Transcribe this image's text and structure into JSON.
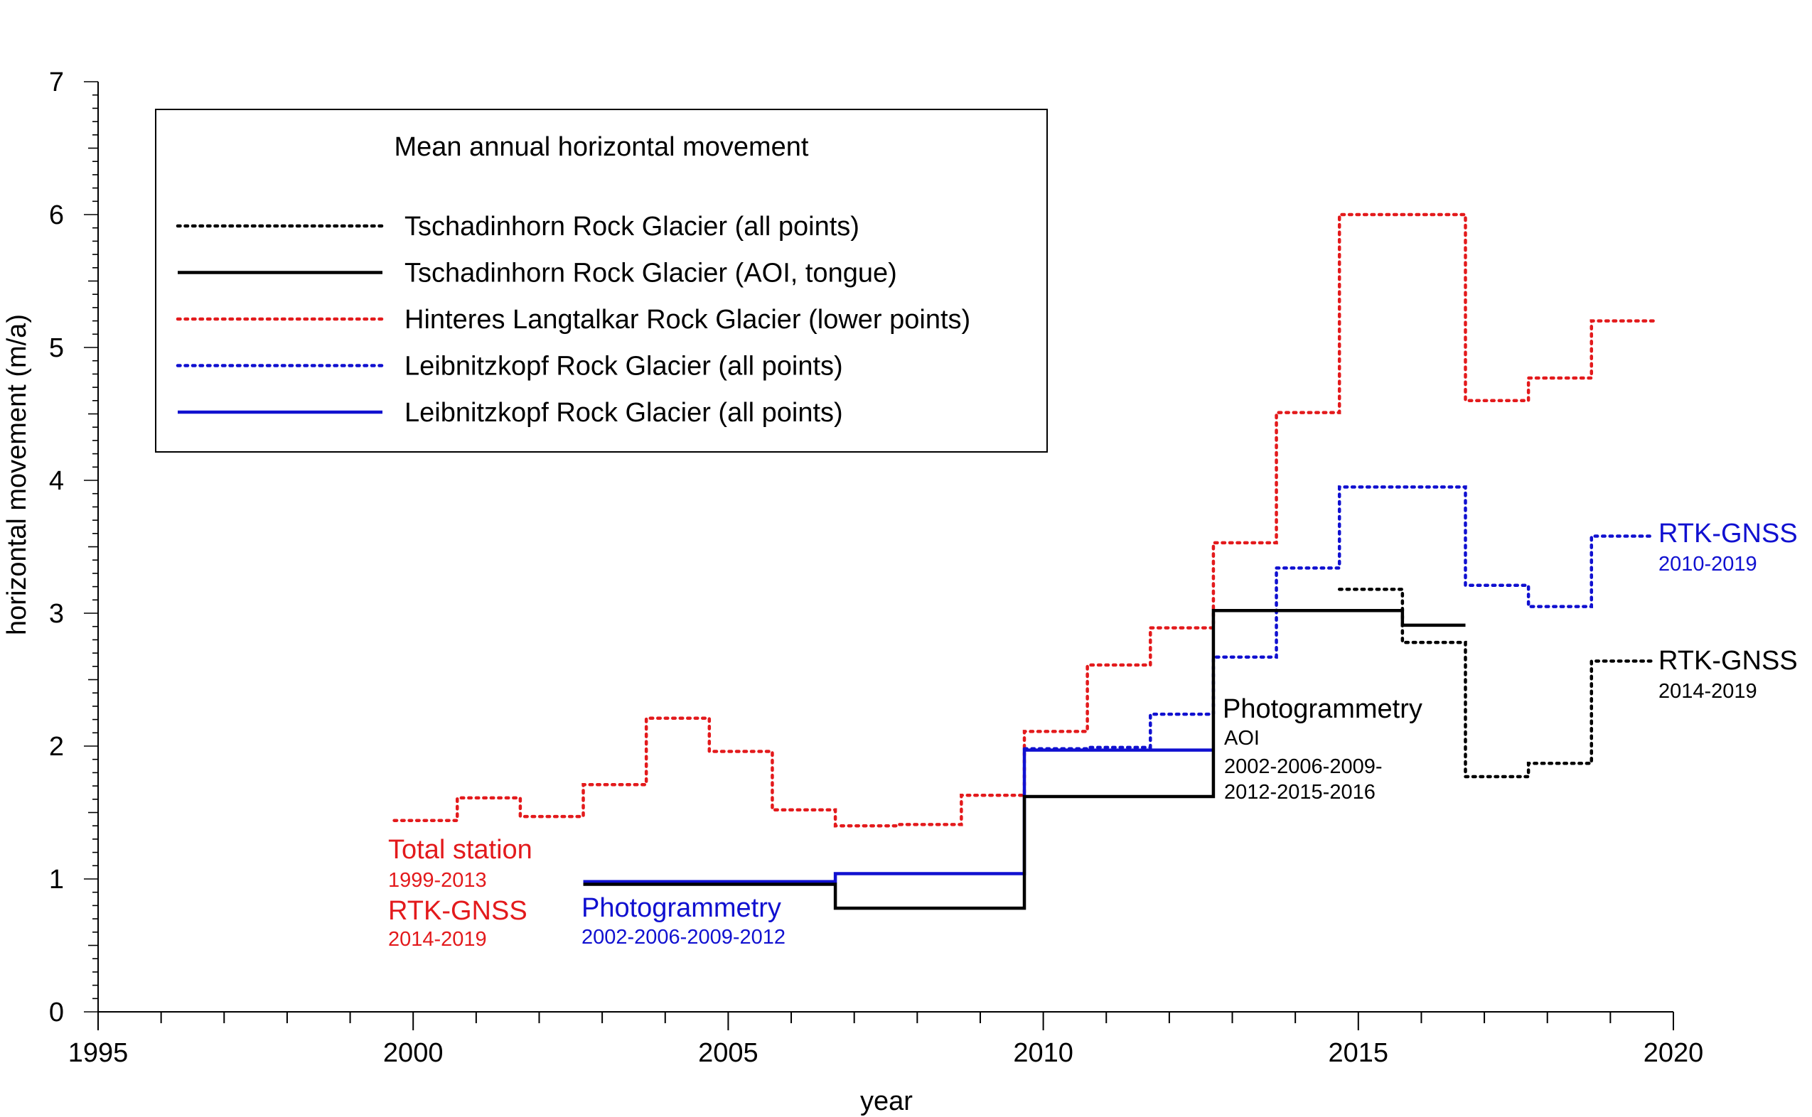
{
  "chart_data": {
    "type": "line",
    "title": "",
    "xlabel": "year",
    "ylabel": "horizontal movement (m/a)",
    "xlim": [
      1995,
      2020
    ],
    "ylim": [
      0,
      7
    ],
    "xticks": [
      1995,
      2000,
      2005,
      2010,
      2015,
      2020
    ],
    "yticks": [
      0,
      1,
      2,
      3,
      4,
      5,
      6,
      7
    ],
    "grid": false,
    "legend": {
      "title": "Mean annual horizontal movement",
      "placement": "top-left",
      "entries": [
        {
          "label": "Tschadinhorn Rock Glacier (all points)",
          "color": "#000000",
          "style": "dotted"
        },
        {
          "label": "Tschadinhorn Rock Glacier (AOI, tongue)",
          "color": "#000000",
          "style": "solid"
        },
        {
          "label": "Hinteres Langtalkar Rock Glacier (lower points)",
          "color": "#e31a1c",
          "style": "dotted"
        },
        {
          "label": "Leibnitzkopf Rock Glacier (all points)",
          "color": "#1010d0",
          "style": "dotted"
        },
        {
          "label": "Leibnitzkopf Rock Glacier (all points)",
          "color": "#1010d0",
          "style": "solid"
        }
      ]
    },
    "series": [
      {
        "color": "#e31a1c",
        "style": "dotted",
        "steps": [
          {
            "x0": 1999.7,
            "x1": 2000.7,
            "y": 1.44
          },
          {
            "x0": 2000.7,
            "x1": 2001.7,
            "y": 1.61
          },
          {
            "x0": 2001.7,
            "x1": 2002.7,
            "y": 1.47
          },
          {
            "x0": 2002.7,
            "x1": 2003.7,
            "y": 1.71
          },
          {
            "x0": 2003.7,
            "x1": 2004.7,
            "y": 2.21
          },
          {
            "x0": 2004.7,
            "x1": 2005.7,
            "y": 1.96
          },
          {
            "x0": 2005.7,
            "x1": 2006.7,
            "y": 1.52
          },
          {
            "x0": 2006.7,
            "x1": 2007.7,
            "y": 1.4
          },
          {
            "x0": 2007.7,
            "x1": 2008.7,
            "y": 1.41
          },
          {
            "x0": 2008.7,
            "x1": 2009.7,
            "y": 1.63
          },
          {
            "x0": 2009.7,
            "x1": 2010.7,
            "y": 2.11
          },
          {
            "x0": 2010.7,
            "x1": 2011.7,
            "y": 2.61
          },
          {
            "x0": 2011.7,
            "x1": 2012.7,
            "y": 2.89
          },
          {
            "x0": 2012.7,
            "x1": 2013.7,
            "y": 3.53
          },
          {
            "x0": 2013.7,
            "x1": 2014.7,
            "y": 4.51
          },
          {
            "x0": 2014.7,
            "x1": 2016.7,
            "y": 6.0
          },
          {
            "x0": 2016.7,
            "x1": 2017.7,
            "y": 4.6
          },
          {
            "x0": 2017.7,
            "x1": 2018.7,
            "y": 4.77
          },
          {
            "x0": 2018.7,
            "x1": 2019.7,
            "y": 5.2
          }
        ]
      },
      {
        "color": "#1010d0",
        "style": "dotted",
        "steps": [
          {
            "x0": 2009.7,
            "x1": 2010.7,
            "y": 1.98
          },
          {
            "x0": 2010.7,
            "x1": 2011.7,
            "y": 1.99
          },
          {
            "x0": 2011.7,
            "x1": 2012.7,
            "y": 2.24
          },
          {
            "x0": 2012.7,
            "x1": 2013.7,
            "y": 2.67
          },
          {
            "x0": 2013.7,
            "x1": 2014.7,
            "y": 3.34
          },
          {
            "x0": 2014.7,
            "x1": 2016.7,
            "y": 3.95
          },
          {
            "x0": 2016.7,
            "x1": 2017.7,
            "y": 3.21
          },
          {
            "x0": 2017.7,
            "x1": 2018.7,
            "y": 3.05
          },
          {
            "x0": 2018.7,
            "x1": 2019.7,
            "y": 3.58
          }
        ]
      },
      {
        "color": "#000000",
        "style": "dotted",
        "steps": [
          {
            "x0": 2014.7,
            "x1": 2015.7,
            "y": 3.18
          },
          {
            "x0": 2015.7,
            "x1": 2016.7,
            "y": 2.78
          },
          {
            "x0": 2016.7,
            "x1": 2017.7,
            "y": 1.77
          },
          {
            "x0": 2017.7,
            "x1": 2018.7,
            "y": 1.87
          },
          {
            "x0": 2018.7,
            "x1": 2019.7,
            "y": 2.64
          }
        ]
      },
      {
        "color": "#1010d0",
        "style": "solid",
        "steps": [
          {
            "x0": 2002.7,
            "x1": 2006.7,
            "y": 0.98
          },
          {
            "x0": 2006.7,
            "x1": 2009.7,
            "y": 1.04
          },
          {
            "x0": 2009.7,
            "x1": 2012.7,
            "y": 1.97
          }
        ]
      },
      {
        "color": "#000000",
        "style": "solid",
        "steps": [
          {
            "x0": 2002.7,
            "x1": 2006.7,
            "y": 0.96
          },
          {
            "x0": 2006.7,
            "x1": 2009.7,
            "y": 0.78
          },
          {
            "x0": 2009.7,
            "x1": 2012.7,
            "y": 1.62
          },
          {
            "x0": 2012.7,
            "x1": 2015.7,
            "y": 3.02
          },
          {
            "x0": 2015.7,
            "x1": 2016.7,
            "y": 2.91
          }
        ]
      }
    ],
    "annotations": {
      "total_station_main": "Total station",
      "total_station_sub": "1999-2013",
      "rtk_gnss_red_main": "RTK-GNSS",
      "rtk_gnss_red_sub": "2014-2019",
      "photo_blue_main": "Photogrammetry",
      "photo_blue_sub": "2002-2006-2009-2012",
      "photo_black_main": "Photogrammetry",
      "photo_black_sub1": "AOI",
      "photo_black_sub2": "2002-2006-2009-",
      "photo_black_sub3": "2012-2015-2016",
      "rtk_gnss_blue_main": "RTK-GNSS",
      "rtk_gnss_blue_sub": "2010-2019",
      "rtk_gnss_black_main": "RTK-GNSS",
      "rtk_gnss_black_sub": "2014-2019"
    },
    "colors": {
      "red": "#e31a1c",
      "blue": "#1010d0",
      "black": "#000000"
    }
  }
}
